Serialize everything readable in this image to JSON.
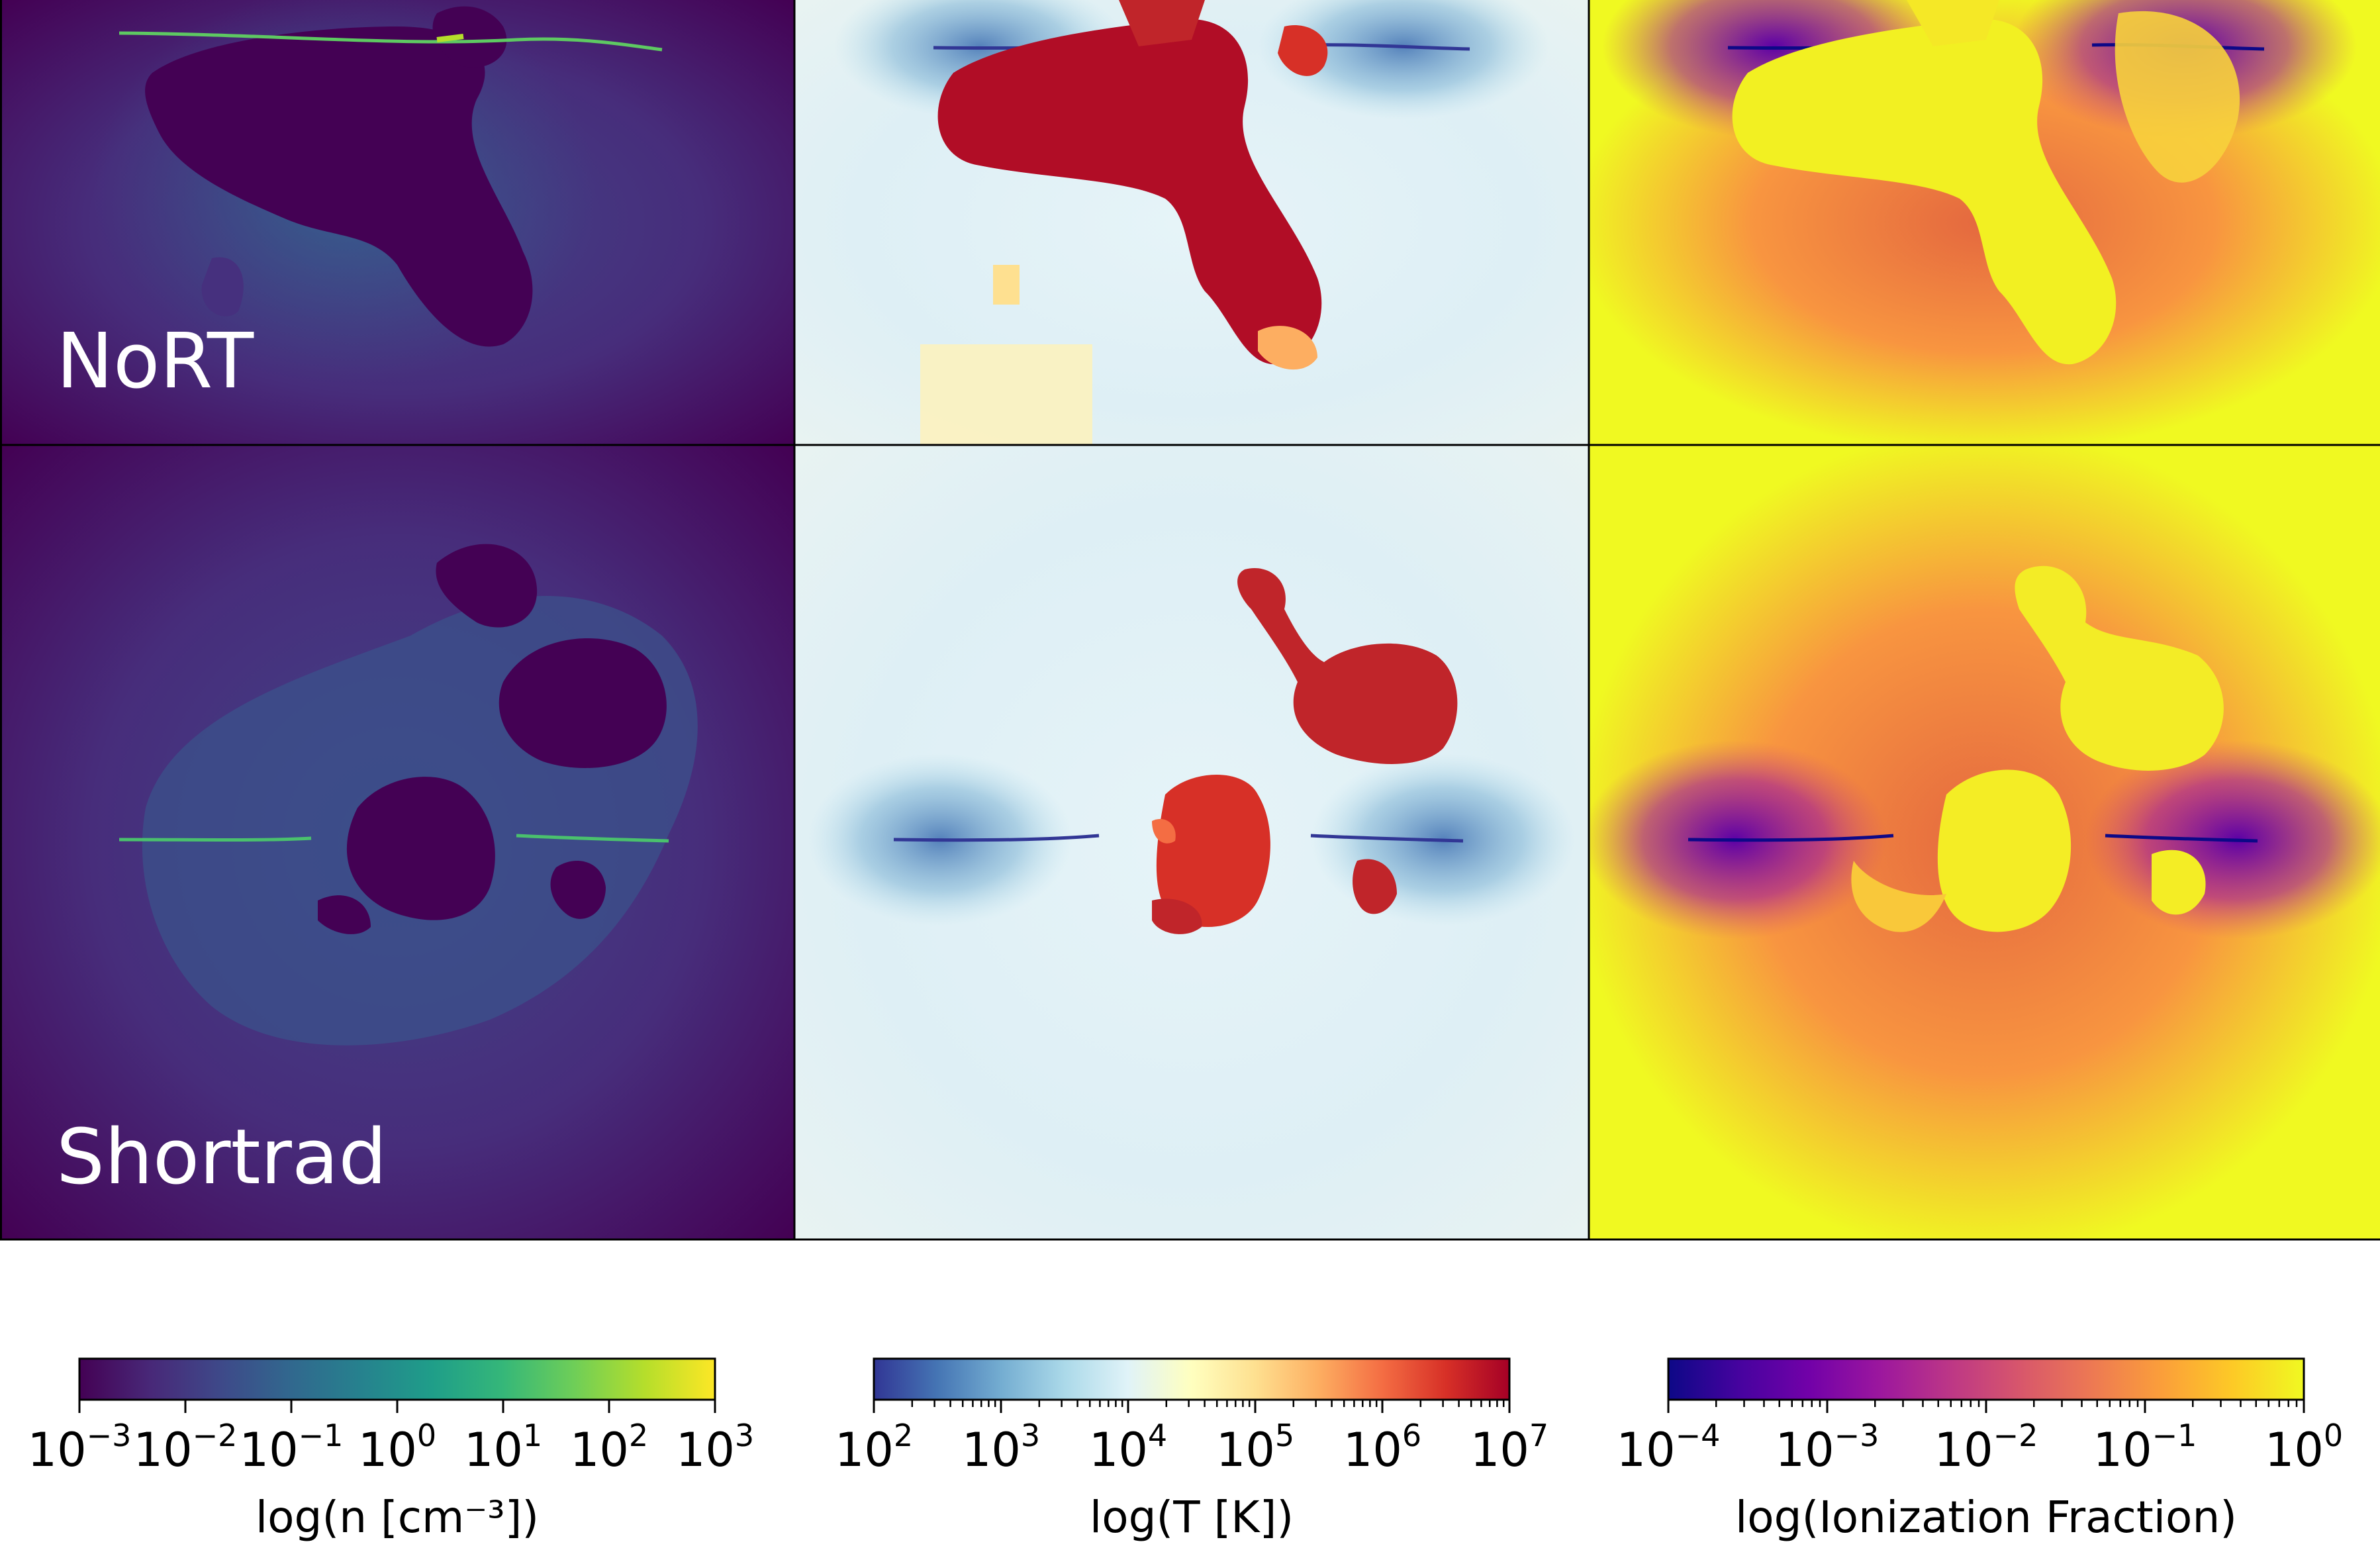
{
  "panels": [
    {
      "row": "NoRT",
      "quantity": "density",
      "cmap": "viridis"
    },
    {
      "row": "NoRT",
      "quantity": "temperature",
      "cmap": "RdYlBu_r"
    },
    {
      "row": "NoRT",
      "quantity": "ionization",
      "cmap": "plasma"
    },
    {
      "row": "Shortrad",
      "quantity": "density",
      "cmap": "viridis"
    },
    {
      "row": "Shortrad",
      "quantity": "temperature",
      "cmap": "RdYlBu_r"
    },
    {
      "row": "Shortrad",
      "quantity": "ionization",
      "cmap": "plasma"
    }
  ],
  "row_labels": [
    "NoRT",
    "Shortrad"
  ],
  "colorbars": [
    {
      "label": "log(n [cm⁻³])",
      "scale": "log",
      "range": [
        0.001,
        1000
      ],
      "ticks": [
        {
          "base": "10",
          "exp": "−3"
        },
        {
          "base": "10",
          "exp": "−2"
        },
        {
          "base": "10",
          "exp": "−1"
        },
        {
          "base": "10",
          "exp": "0"
        },
        {
          "base": "10",
          "exp": "1"
        },
        {
          "base": "10",
          "exp": "2"
        },
        {
          "base": "10",
          "exp": "3"
        }
      ],
      "colors": [
        "#440154",
        "#482878",
        "#3e4989",
        "#31688e",
        "#26828e",
        "#1f9e89",
        "#35b779",
        "#6ece58",
        "#b5de2b",
        "#fde725"
      ]
    },
    {
      "label": "log(T [K])",
      "scale": "log",
      "range": [
        100,
        10000000
      ],
      "ticks": [
        {
          "base": "10",
          "exp": "2"
        },
        {
          "base": "10",
          "exp": "3"
        },
        {
          "base": "10",
          "exp": "4"
        },
        {
          "base": "10",
          "exp": "5"
        },
        {
          "base": "10",
          "exp": "6"
        },
        {
          "base": "10",
          "exp": "7"
        }
      ],
      "colors": [
        "#313695",
        "#4575b4",
        "#74add1",
        "#abd9e9",
        "#e0f3f8",
        "#ffffbf",
        "#fee090",
        "#fdae61",
        "#f46d43",
        "#d73027",
        "#a50026"
      ]
    },
    {
      "label": "log(Ionization Fraction)",
      "scale": "log",
      "range": [
        0.0001,
        1
      ],
      "ticks": [
        {
          "base": "10",
          "exp": "−4"
        },
        {
          "base": "10",
          "exp": "−3"
        },
        {
          "base": "10",
          "exp": "−2"
        },
        {
          "base": "10",
          "exp": "−1"
        },
        {
          "base": "10",
          "exp": "0"
        }
      ],
      "colors": [
        "#0d0887",
        "#46039f",
        "#7201a8",
        "#9c179e",
        "#bd3786",
        "#d8576b",
        "#ed7953",
        "#fb9f3a",
        "#fdca26",
        "#f0f921"
      ]
    }
  ]
}
